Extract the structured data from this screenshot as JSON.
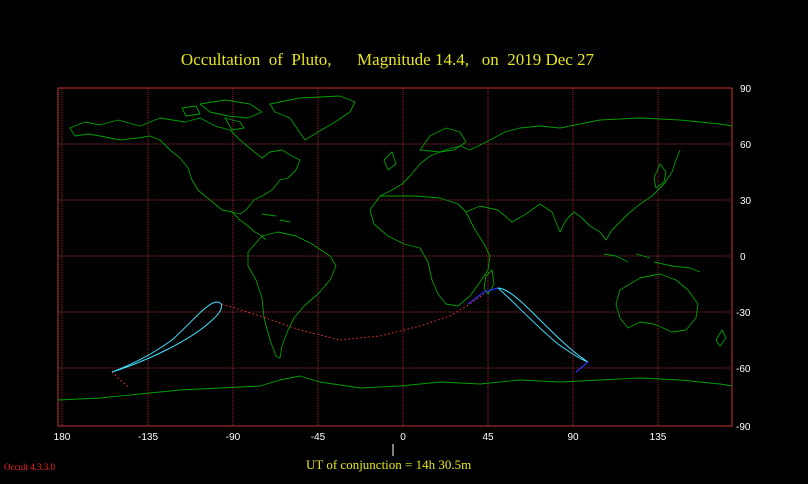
{
  "title": {
    "object_prefix": "Occultation  of  ",
    "object": "Pluto,",
    "magnitude_prefix": "Magnitude ",
    "magnitude": "14.4,",
    "date_prefix": "on  ",
    "date": "2019 Dec 27"
  },
  "title_text": "Occultation  of  Pluto,      Magnitude 14.4,   on  2019 Dec 27",
  "conjunction": "UT of conjunction = 14h 30.5m",
  "version": "Occult 4.3.3.0",
  "axes": {
    "lon_labels": [
      "180",
      "-135",
      "-90",
      "-45",
      "0",
      "45",
      "90",
      "135"
    ],
    "lat_labels": [
      "90",
      "60",
      "30",
      "0",
      "-30",
      "-60",
      "-90"
    ]
  },
  "colors": {
    "background": "#000000",
    "grid": "#c83232",
    "coast": "#00a000",
    "path_limits": "#40e0ff",
    "center_line": "#ff3030",
    "title": "#e6e61e",
    "dark_path": "#3030ff"
  }
}
